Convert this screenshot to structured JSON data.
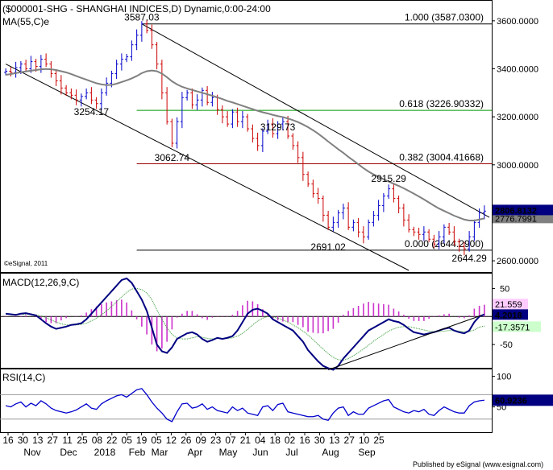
{
  "chart_data": {
    "type": "candlestick",
    "title": "($000001-SHG - SHANGHAI INDICES,D) Dynamic,0:00-24:00",
    "watermark": "©eSignal, 2011",
    "footer": "Published by eSignal (www.esignal.com)",
    "colors": {
      "up": "#0000cc",
      "down": "#cc0000",
      "ma": "#808080",
      "fib_green": "#009900",
      "fib_red": "#990000",
      "macd": "#000080",
      "signal": "#339933",
      "hist": "#cc33cc",
      "rsi": "#0000cc",
      "price_tag": "#000080"
    },
    "x_labels": [
      "16",
      "30",
      "13",
      "27",
      "11",
      "25",
      "08",
      "22",
      "05",
      "19",
      "05",
      "12",
      "26",
      "09",
      "23",
      "07",
      "21",
      "04",
      "18",
      "02",
      "16",
      "30",
      "13",
      "27",
      "10",
      "25"
    ],
    "x_month_labels": [
      "Nov",
      "Dec",
      "2018",
      "Feb",
      "Mar",
      "Apr",
      "May",
      "Jun",
      "Jul",
      "Aug",
      "Sep"
    ],
    "price_panel": {
      "ylim": [
        2560,
        3680
      ],
      "ticks": [
        3600,
        3400,
        3200,
        3000,
        2800,
        2600
      ],
      "tick_labels": [
        "3600.0000",
        "3400.0000",
        "3200.0000",
        "3000.0000",
        "2800.0000",
        "2600.0000"
      ],
      "ma_label": "MA(55,C)e",
      "ma_value": "2776.7991",
      "last_value": "2806.8132",
      "close": [
        3390,
        3385,
        3405,
        3420,
        3400,
        3430,
        3410,
        3440,
        3420,
        3380,
        3350,
        3320,
        3300,
        3290,
        3270,
        3285,
        3300,
        3270,
        3255,
        3300,
        3340,
        3380,
        3420,
        3440,
        3450,
        3500,
        3540,
        3587,
        3560,
        3500,
        3420,
        3300,
        3180,
        3090,
        3180,
        3280,
        3300,
        3250,
        3270,
        3310,
        3260,
        3280,
        3230,
        3200,
        3170,
        3220,
        3180,
        3200,
        3150,
        3110,
        3080,
        3140,
        3170,
        3130,
        3170,
        3180,
        3120,
        3080,
        3030,
        2960,
        2920,
        2880,
        2860,
        2790,
        2740,
        2760,
        2800,
        2820,
        2740,
        2760,
        2720,
        2700,
        2760,
        2790,
        2830,
        2870,
        2900,
        2860,
        2820,
        2770,
        2730,
        2720,
        2710,
        2720,
        2690,
        2670,
        2700,
        2740,
        2720,
        2680,
        2660,
        2650,
        2700,
        2760,
        2800,
        2807
      ],
      "ma": [
        3375,
        3378,
        3382,
        3386,
        3389,
        3392,
        3395,
        3398,
        3399,
        3398,
        3395,
        3390,
        3385,
        3378,
        3370,
        3362,
        3355,
        3347,
        3340,
        3335,
        3332,
        3333,
        3338,
        3345,
        3352,
        3360,
        3370,
        3382,
        3390,
        3393,
        3390,
        3380,
        3365,
        3348,
        3335,
        3325,
        3318,
        3312,
        3306,
        3300,
        3294,
        3288,
        3281,
        3274,
        3266,
        3260,
        3253,
        3246,
        3239,
        3232,
        3225,
        3219,
        3214,
        3208,
        3203,
        3199,
        3193,
        3186,
        3178,
        3168,
        3157,
        3144,
        3130,
        3114,
        3097,
        3081,
        3065,
        3050,
        3033,
        3018,
        3002,
        2986,
        2972,
        2960,
        2950,
        2940,
        2930,
        2921,
        2912,
        2902,
        2891,
        2880,
        2868,
        2856,
        2843,
        2830,
        2818,
        2808,
        2798,
        2788,
        2780,
        2772,
        2768,
        2768,
        2772,
        2777
      ],
      "channel_lines": [
        {
          "from": [
            27,
            3587
          ],
          "to": [
            96,
            2781
          ]
        },
        {
          "from": [
            0,
            3420
          ],
          "to": [
            80,
            2560
          ]
        }
      ],
      "fib_levels": [
        {
          "value": 3587.03,
          "label": "1.000 (3587.0300)",
          "color": "#000000"
        },
        {
          "value": 3226.90332,
          "label": "0.618 (3226.90332)",
          "color": "#009900"
        },
        {
          "value": 3004.41668,
          "label": "0.382 (3004.41668)",
          "color": "#990000"
        },
        {
          "value": 2644.29,
          "label": "0.000 (2644.2900)",
          "color": "#000000"
        }
      ],
      "annotations": [
        {
          "text": "3587.03",
          "x": 27,
          "y": 3587.03
        },
        {
          "text": "3254.17",
          "x": 17,
          "y": 3254.17
        },
        {
          "text": "3062.74",
          "x": 33,
          "y": 3062.74
        },
        {
          "text": "3129.73",
          "x": 54,
          "y": 3129.73
        },
        {
          "text": "2915.29",
          "x": 76,
          "y": 2915.29
        },
        {
          "text": "2691.02",
          "x": 64,
          "y": 2691.02
        },
        {
          "text": "2644.29",
          "x": 92,
          "y": 2644.29
        }
      ]
    },
    "macd_panel": {
      "label": "MACD(12,26,9,C)",
      "ylim": [
        -90,
        75
      ],
      "tick_labels": [
        "50",
        "-50"
      ],
      "ticks": [
        50,
        -50
      ],
      "macd_value": "4.2018",
      "signal_value": "-17.3571",
      "hist_value": "21.559",
      "macd": [
        5,
        4,
        3,
        5,
        6,
        4,
        2,
        -5,
        -12,
        -18,
        -22,
        -20,
        -18,
        -15,
        -14,
        -12,
        -5,
        5,
        15,
        25,
        35,
        45,
        55,
        65,
        68,
        60,
        45,
        30,
        10,
        -20,
        -50,
        -62,
        -65,
        -55,
        -40,
        -35,
        -30,
        -28,
        -32,
        -40,
        -45,
        -42,
        -38,
        -40,
        -38,
        -35,
        -25,
        -10,
        5,
        12,
        14,
        10,
        5,
        -5,
        -10,
        -15,
        -20,
        -25,
        -35,
        -45,
        -60,
        -70,
        -80,
        -88,
        -92,
        -95,
        -88,
        -75,
        -65,
        -55,
        -45,
        -35,
        -25,
        -20,
        -15,
        -10,
        -5,
        -8,
        -10,
        -15,
        -22,
        -28,
        -30,
        -32,
        -30,
        -28,
        -25,
        -22,
        -20,
        -25,
        -28,
        -30,
        -25,
        -10,
        0,
        4
      ],
      "signal": [
        4,
        4,
        4,
        4,
        4,
        4,
        3,
        1,
        -2,
        -6,
        -10,
        -13,
        -15,
        -15,
        -15,
        -14,
        -12,
        -8,
        -3,
        3,
        10,
        18,
        26,
        35,
        43,
        49,
        50,
        48,
        42,
        30,
        12,
        -5,
        -20,
        -32,
        -38,
        -40,
        -40,
        -38,
        -36,
        -37,
        -39,
        -40,
        -39,
        -39,
        -39,
        -38,
        -35,
        -30,
        -23,
        -15,
        -8,
        -3,
        0,
        -1,
        -3,
        -6,
        -10,
        -15,
        -20,
        -26,
        -33,
        -41,
        -50,
        -58,
        -66,
        -73,
        -77,
        -78,
        -75,
        -70,
        -64,
        -58,
        -51,
        -44,
        -38,
        -32,
        -26,
        -22,
        -19,
        -18,
        -18,
        -20,
        -22,
        -24,
        -26,
        -27,
        -27,
        -26,
        -25,
        -25,
        -26,
        -27,
        -27,
        -24,
        -19,
        -17
      ]
    },
    "rsi_panel": {
      "label": "RSI(14,C)",
      "ylim": [
        10,
        110
      ],
      "ticks": [
        100,
        50
      ],
      "tick_labels": [
        "100",
        "50"
      ],
      "rsi_value": "60.9236",
      "values": [
        52,
        50,
        55,
        58,
        50,
        56,
        52,
        60,
        55,
        48,
        44,
        42,
        40,
        42,
        45,
        50,
        55,
        48,
        46,
        55,
        60,
        64,
        68,
        70,
        66,
        72,
        78,
        80,
        70,
        58,
        48,
        40,
        30,
        26,
        42,
        55,
        56,
        48,
        50,
        55,
        46,
        50,
        44,
        42,
        40,
        50,
        44,
        48,
        40,
        38,
        36,
        50,
        52,
        44,
        54,
        56,
        42,
        40,
        38,
        36,
        34,
        34,
        36,
        30,
        28,
        40,
        48,
        50,
        36,
        42,
        38,
        38,
        48,
        52,
        56,
        60,
        62,
        50,
        46,
        42,
        40,
        44,
        42,
        46,
        38,
        36,
        44,
        50,
        46,
        42,
        40,
        40,
        52,
        58,
        60,
        61
      ]
    }
  }
}
